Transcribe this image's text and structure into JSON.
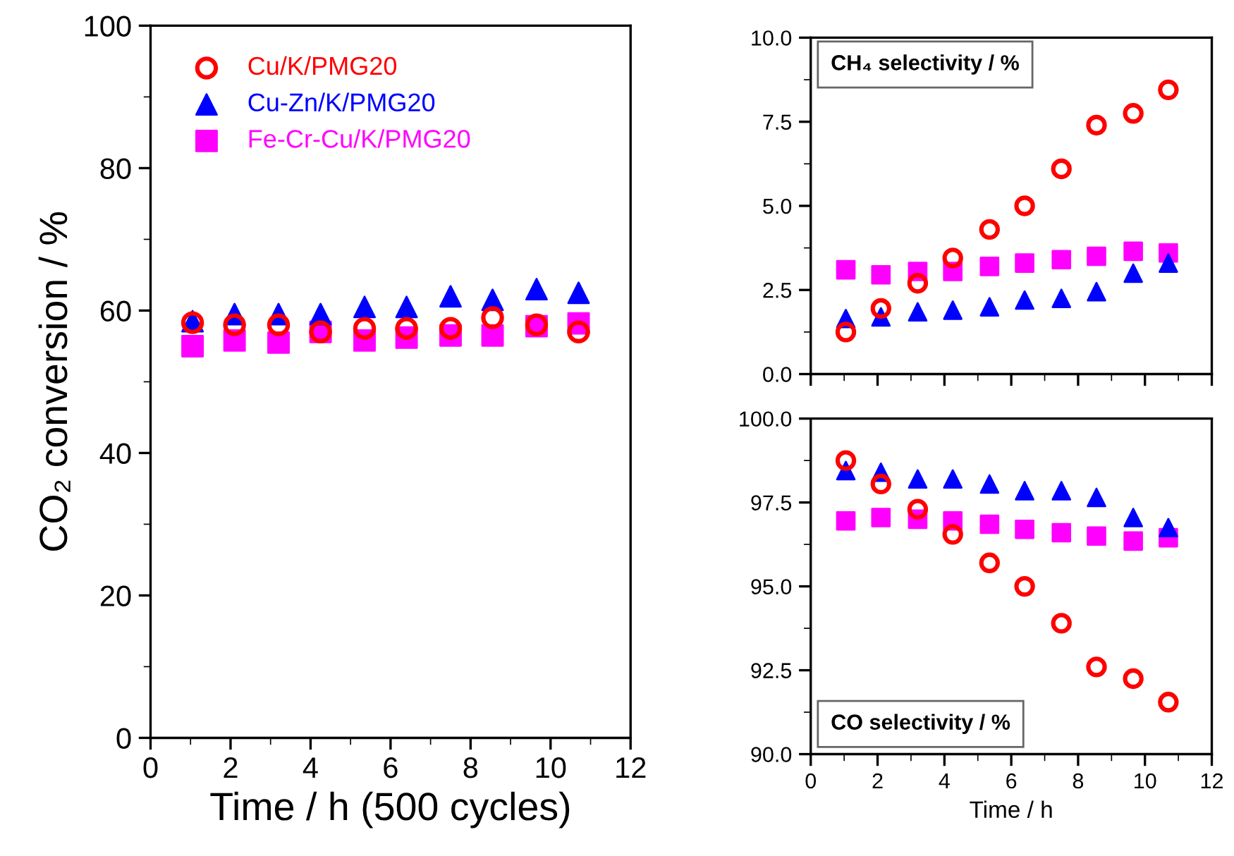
{
  "chart_data": [
    {
      "type": "scatter",
      "xlabel": "Time / h (500 cycles)",
      "ylabel": "CO₂ conversion / %",
      "xlim": [
        0,
        12
      ],
      "xticks": [
        0,
        2,
        4,
        6,
        8,
        10,
        12
      ],
      "ylim": [
        0,
        100
      ],
      "yticks": [
        0,
        20,
        40,
        60,
        80,
        100
      ],
      "grid": false,
      "legend": "top left",
      "x": [
        1.05,
        2.1,
        3.2,
        4.25,
        5.35,
        6.4,
        7.5,
        8.55,
        9.65,
        10.7
      ],
      "series": [
        {
          "name": "Cu/K/PMG20",
          "color": "#ff0000",
          "marker": "circle",
          "values": [
            58.3,
            58,
            58,
            57,
            57.5,
            57.5,
            57.5,
            59,
            58,
            57
          ]
        },
        {
          "name": "Cu-Zn/K/PMG20",
          "color": "#0000ff",
          "marker": "triangle",
          "values": [
            58.5,
            59.5,
            59.5,
            59.5,
            60.5,
            60.5,
            62,
            61.5,
            63,
            62.5
          ]
        },
        {
          "name": "Fe-Cr-Cu/K/PMG20",
          "color": "#ff00ff",
          "marker": "square",
          "values": [
            55,
            55.8,
            55.5,
            57,
            55.8,
            56.2,
            56.5,
            56.5,
            57.8,
            58.2
          ]
        }
      ]
    },
    {
      "type": "scatter",
      "annotations": [
        "CH₄ selectivity / %"
      ],
      "xlim": [
        0,
        12
      ],
      "xticks": [
        0,
        2,
        4,
        6,
        8,
        10,
        12
      ],
      "ylim": [
        0,
        10
      ],
      "yticks": [
        {
          "value": 0,
          "label": "0.0"
        },
        {
          "value": 2.5,
          "label": "2.5"
        },
        {
          "value": 5,
          "label": "5.0"
        },
        {
          "value": 7.5,
          "label": "7.5"
        },
        {
          "value": 10,
          "label": "10.0"
        }
      ],
      "tick_labels": "y",
      "grid": false,
      "x": [
        1.05,
        2.1,
        3.2,
        4.25,
        5.35,
        6.4,
        7.5,
        8.55,
        9.65,
        10.7
      ],
      "series": [
        {
          "color": "#ff0000",
          "marker": "circle",
          "values": [
            1.25,
            1.95,
            2.7,
            3.45,
            4.3,
            5.0,
            6.1,
            7.4,
            7.75,
            8.45
          ]
        },
        {
          "color": "#0000ff",
          "marker": "triangle",
          "values": [
            1.65,
            1.7,
            1.85,
            1.9,
            2.0,
            2.2,
            2.25,
            2.45,
            3.0,
            3.3
          ]
        },
        {
          "color": "#ff00ff",
          "marker": "square",
          "values": [
            3.1,
            2.95,
            3.05,
            3.05,
            3.2,
            3.3,
            3.4,
            3.5,
            3.65,
            3.6
          ]
        }
      ]
    },
    {
      "type": "scatter",
      "annotations": [
        "CO selectivity / %"
      ],
      "xlabel": "Time / h",
      "xlim": [
        0,
        12
      ],
      "xticks": [
        0,
        2,
        4,
        6,
        8,
        10,
        12
      ],
      "ylim": [
        90,
        100
      ],
      "yticks": [
        {
          "value": 90,
          "label": "90.0"
        },
        {
          "value": 92.5,
          "label": "92.5"
        },
        {
          "value": 95,
          "label": "95.0"
        },
        {
          "value": 97.5,
          "label": "97.5"
        },
        {
          "value": 100,
          "label": "100.0"
        }
      ],
      "grid": false,
      "x": [
        1.05,
        2.1,
        3.2,
        4.25,
        5.35,
        6.4,
        7.5,
        8.55,
        9.65,
        10.7
      ],
      "series": [
        {
          "color": "#ff0000",
          "marker": "circle",
          "values": [
            98.75,
            98.05,
            97.3,
            96.55,
            95.7,
            95.0,
            93.9,
            92.6,
            92.25,
            91.55
          ]
        },
        {
          "color": "#0000ff",
          "marker": "triangle",
          "values": [
            98.45,
            98.4,
            98.2,
            98.2,
            98.05,
            97.85,
            97.85,
            97.65,
            97.05,
            96.75
          ]
        },
        {
          "color": "#ff00ff",
          "marker": "square",
          "values": [
            96.95,
            97.05,
            97.0,
            96.95,
            96.85,
            96.7,
            96.6,
            96.5,
            96.35,
            96.45
          ]
        }
      ]
    }
  ]
}
